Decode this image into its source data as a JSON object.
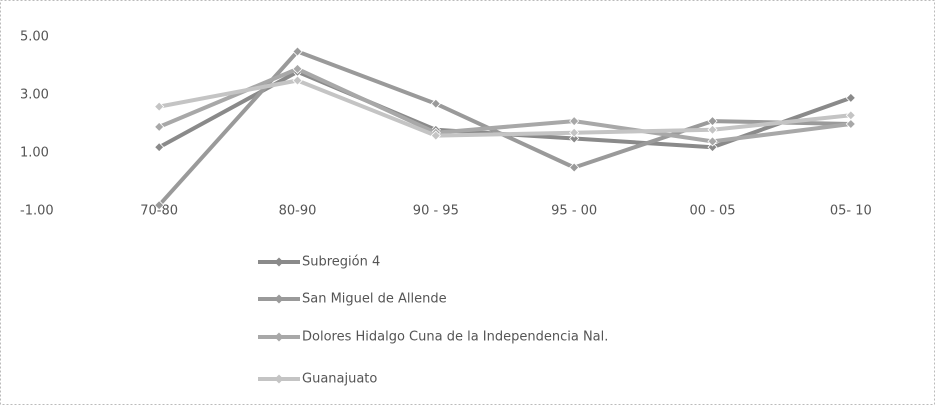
{
  "chart_data": {
    "type": "line",
    "categories": [
      "70-80",
      "80-90",
      "90 - 95",
      "95 - 00",
      "00 - 05",
      "05- 10"
    ],
    "series": [
      {
        "name": "Subregión 4",
        "color": "#8a8a8a",
        "values": [
          1.2,
          3.8,
          1.8,
          1.5,
          1.2,
          2.9
        ]
      },
      {
        "name": "San Miguel de Allende",
        "color": "#9a9a9a",
        "values": [
          -0.8,
          4.5,
          2.7,
          0.5,
          2.1,
          2.0
        ]
      },
      {
        "name": "Dolores Hidalgo Cuna de la Independencia Nal.",
        "color": "#a8a8a8",
        "values": [
          1.9,
          3.9,
          1.7,
          2.1,
          1.4,
          2.0
        ]
      },
      {
        "name": "Guanajuato",
        "color": "#c4c4c4",
        "values": [
          2.6,
          3.5,
          1.6,
          1.7,
          1.8,
          2.3
        ]
      }
    ],
    "ylim": [
      -1,
      5
    ],
    "yticks": [
      {
        "value": -1,
        "label": "-1.00"
      },
      {
        "value": 1,
        "label": "1.00"
      },
      {
        "value": 3,
        "label": "3.00"
      },
      {
        "value": 5,
        "label": "5.00"
      }
    ],
    "legend": "bottom"
  }
}
